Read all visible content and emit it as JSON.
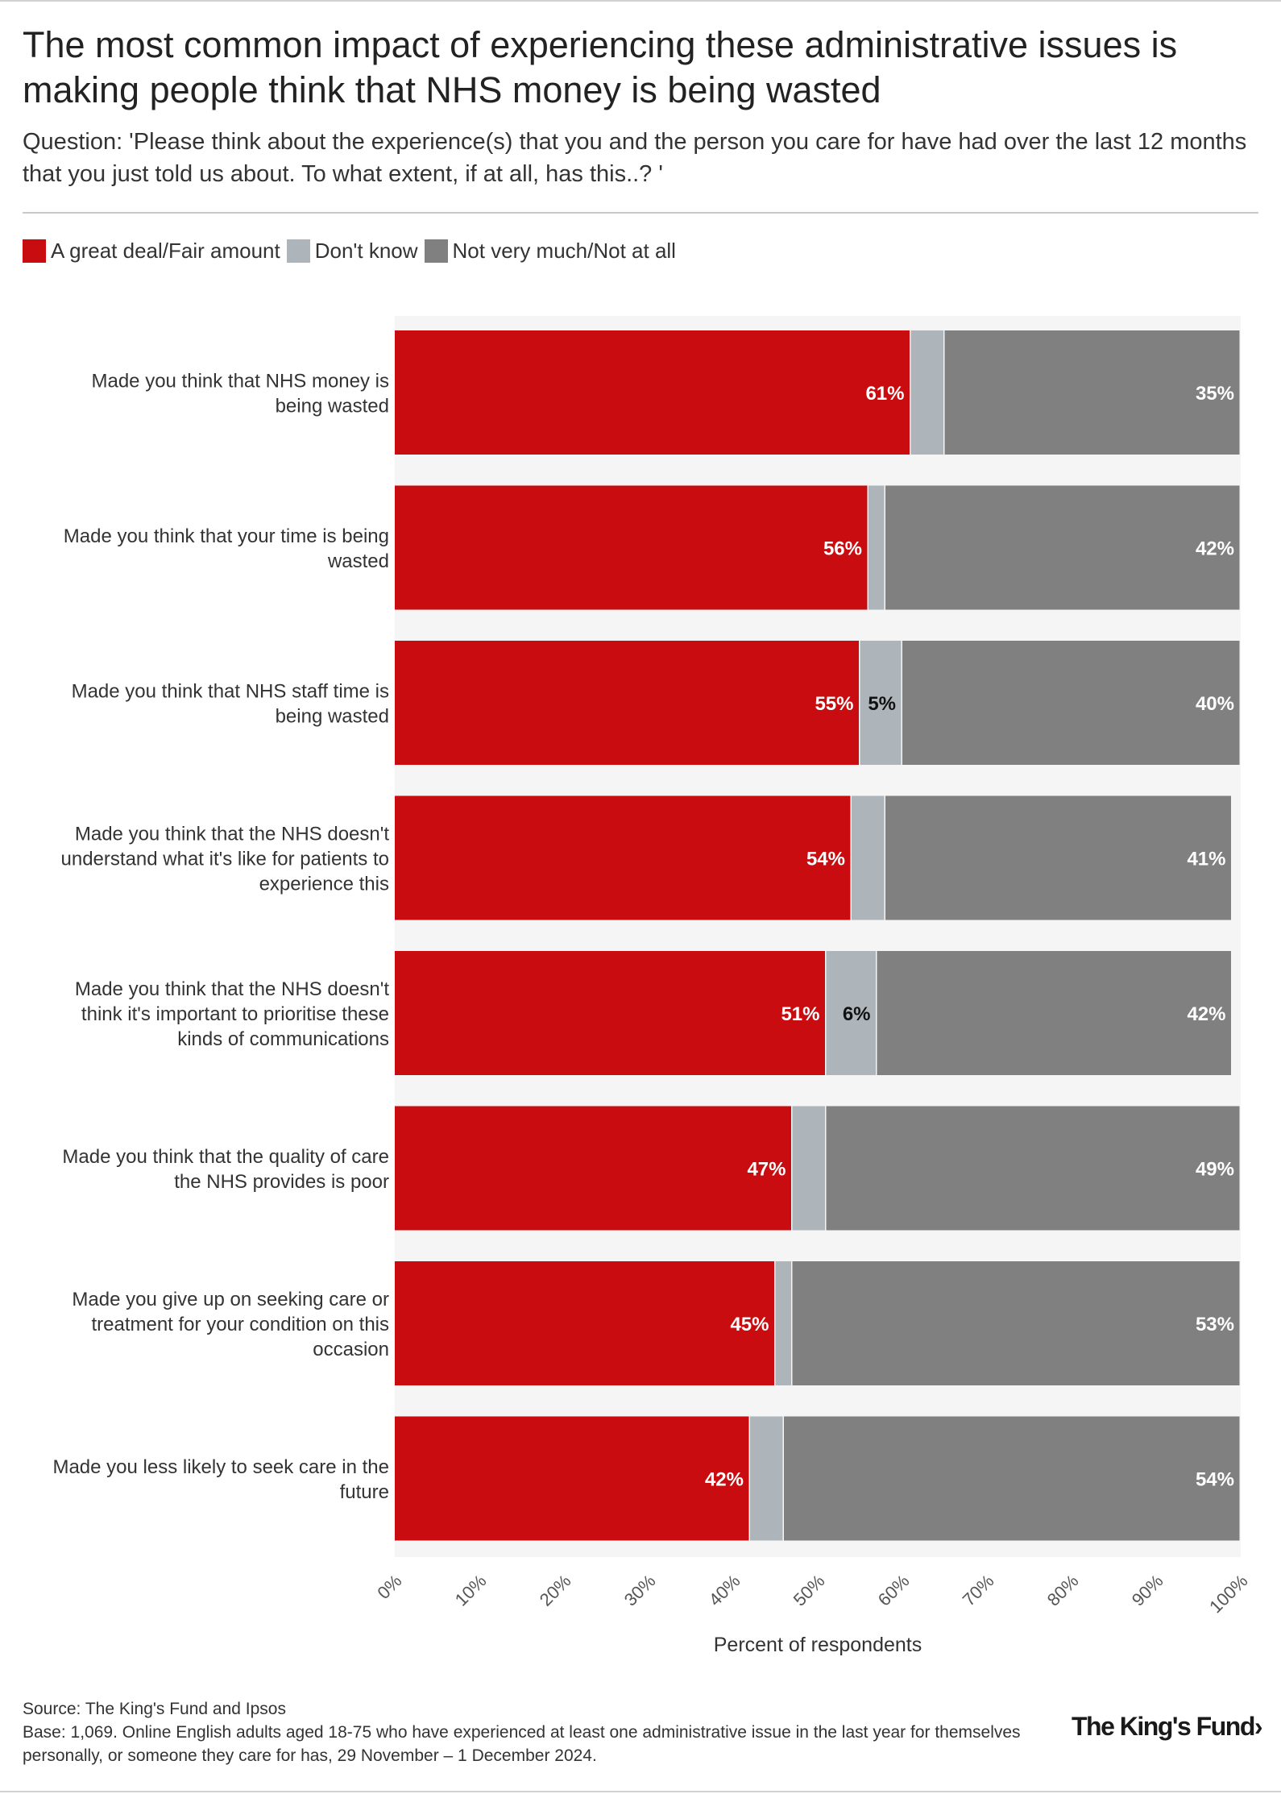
{
  "title": "The most common impact of experiencing these administrative issues is making people think that NHS money is being wasted",
  "subtitle": "Question: 'Please think about the experience(s) that you and the person you care for have had over the last 12 months that you just told us about. To what extent, if at all, has this..? '",
  "colors": {
    "great_deal": "#c90c0f",
    "dont_know": "#adb5bb",
    "not_much": "#808080",
    "row_bg": "#f5f5f5"
  },
  "chart_data": {
    "type": "bar",
    "orientation": "horizontal",
    "stacked": true,
    "xlabel": "Percent of respondents",
    "xlim": [
      0,
      100
    ],
    "ticks": [
      "0%",
      "10%",
      "20%",
      "30%",
      "40%",
      "50%",
      "60%",
      "70%",
      "80%",
      "90%",
      "100%"
    ],
    "legend_position": "top-left",
    "categories": [
      "Made you think that NHS money is being wasted",
      "Made you think that your time is being wasted",
      "Made you think that NHS staff time is being wasted",
      "Made you think that the NHS doesn't understand what it's like for patients to experience this",
      "Made you think that the NHS doesn't think it's important to prioritise these kinds of communications",
      "Made you think that the quality of care the NHS provides is poor",
      "Made you give up on seeking care or treatment for your condition on this occasion",
      "Made you less likely to seek care in the future"
    ],
    "category_lines": [
      [
        "Made you think that NHS money is",
        "being wasted"
      ],
      [
        "Made you think that your time is being",
        "wasted"
      ],
      [
        "Made you think that NHS staff time is",
        "being wasted"
      ],
      [
        "Made you think that the NHS doesn't",
        "understand what it's like for patients to",
        "experience this"
      ],
      [
        "Made you think that the NHS doesn't",
        "think it's important to prioritise these",
        "kinds of communications"
      ],
      [
        "Made you think that the quality of care",
        "the NHS provides is poor"
      ],
      [
        "Made you give up on seeking care or",
        "treatment for your condition on this",
        "occasion"
      ],
      [
        "Made you less likely to seek care in the",
        "future"
      ]
    ],
    "series": [
      {
        "name": "A great deal/Fair amount",
        "color_key": "great_deal",
        "values": [
          61,
          56,
          55,
          54,
          51,
          47,
          45,
          42
        ],
        "labels": [
          "61%",
          "56%",
          "55%",
          "54%",
          "51%",
          "47%",
          "45%",
          "42%"
        ]
      },
      {
        "name": "Don't know",
        "color_key": "dont_know",
        "values": [
          4,
          2,
          5,
          4,
          6,
          4,
          2,
          4
        ],
        "labels": [
          "",
          "",
          "5%",
          "",
          "6%",
          "",
          "",
          ""
        ]
      },
      {
        "name": "Not very much/Not at all",
        "color_key": "not_much",
        "values": [
          35,
          42,
          40,
          41,
          42,
          49,
          53,
          54
        ],
        "labels": [
          "35%",
          "42%",
          "40%",
          "41%",
          "42%",
          "49%",
          "53%",
          "54%"
        ]
      }
    ]
  },
  "footer": {
    "source": "Source: The King's Fund and Ipsos",
    "base": "Base: 1,069. Online English adults aged 18-75 who have experienced at least one administrative issue in the last year for themselves personally, or someone they care for has, 29 November – 1 December 2024."
  },
  "logo_text": "The King's Fund",
  "logo_mark": "›"
}
